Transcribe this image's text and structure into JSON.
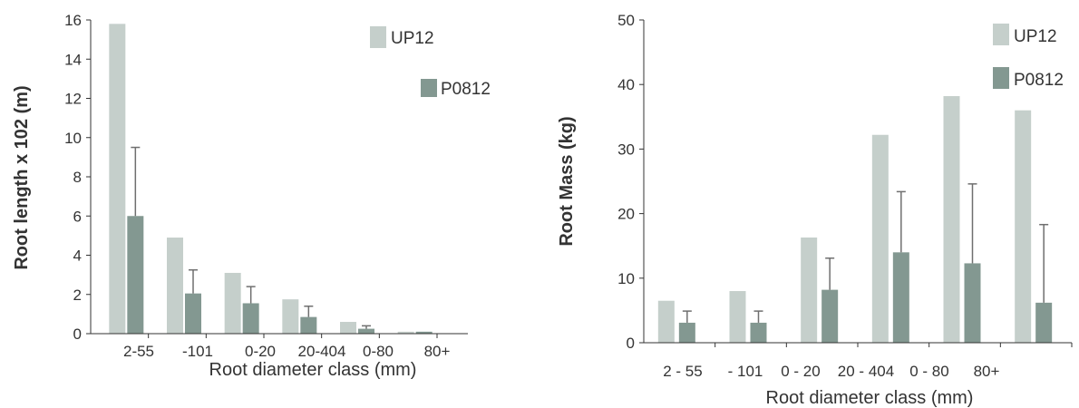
{
  "chart_data": [
    {
      "type": "bar",
      "categories": [
        "2-55",
        "-101",
        "0-20",
        "20-404",
        "0-80",
        "80+"
      ],
      "series": [
        {
          "name": "UP12",
          "values": [
            15.8,
            4.9,
            3.1,
            1.75,
            0.6,
            0.1
          ],
          "error": [
            0,
            0,
            0,
            0,
            0,
            0
          ]
        },
        {
          "name": "P0812",
          "values": [
            6.0,
            2.05,
            1.55,
            0.85,
            0.25,
            0.1
          ],
          "error": [
            3.5,
            1.2,
            0.85,
            0.55,
            0.15,
            0
          ]
        }
      ],
      "xlabel": "Root diameter class (mm)",
      "ylabel": "Root length x 102 (m)",
      "ylim": [
        0,
        16
      ],
      "yticks": [
        "0",
        "2",
        "4",
        "6",
        "8",
        "10",
        "12",
        "14",
        "16"
      ],
      "grid": false,
      "legend": "top-right",
      "colors": {
        "UP12": "#c5cfcb",
        "P0812": "#839891",
        "error": "#6f6f6f",
        "axis": "#333333"
      }
    },
    {
      "type": "bar",
      "categories": [
        "2 - 55",
        "- 101",
        "0 - 20",
        "20 - 404",
        "0 - 80",
        "80+"
      ],
      "series": [
        {
          "name": "UP12",
          "values": [
            6.5,
            8.0,
            16.3,
            32.2,
            38.2,
            36.0
          ],
          "error": [
            0,
            0,
            0,
            0,
            0,
            0
          ]
        },
        {
          "name": "P0812",
          "values": [
            3.1,
            3.1,
            8.2,
            14.0,
            12.3,
            6.2
          ],
          "error": [
            1.8,
            1.8,
            4.9,
            9.4,
            12.3,
            12.1
          ]
        }
      ],
      "xlabel": "Root diameter class (mm)",
      "ylabel": "Root  Mass (kg)",
      "ylim": [
        0,
        50
      ],
      "yticks": [
        "0",
        "10",
        "20",
        "30",
        "40",
        "50"
      ],
      "grid": false,
      "legend": "top-right",
      "colors": {
        "UP12": "#c5cfcb",
        "P0812": "#839891",
        "error": "#6f6f6f",
        "axis": "#333333"
      }
    }
  ]
}
